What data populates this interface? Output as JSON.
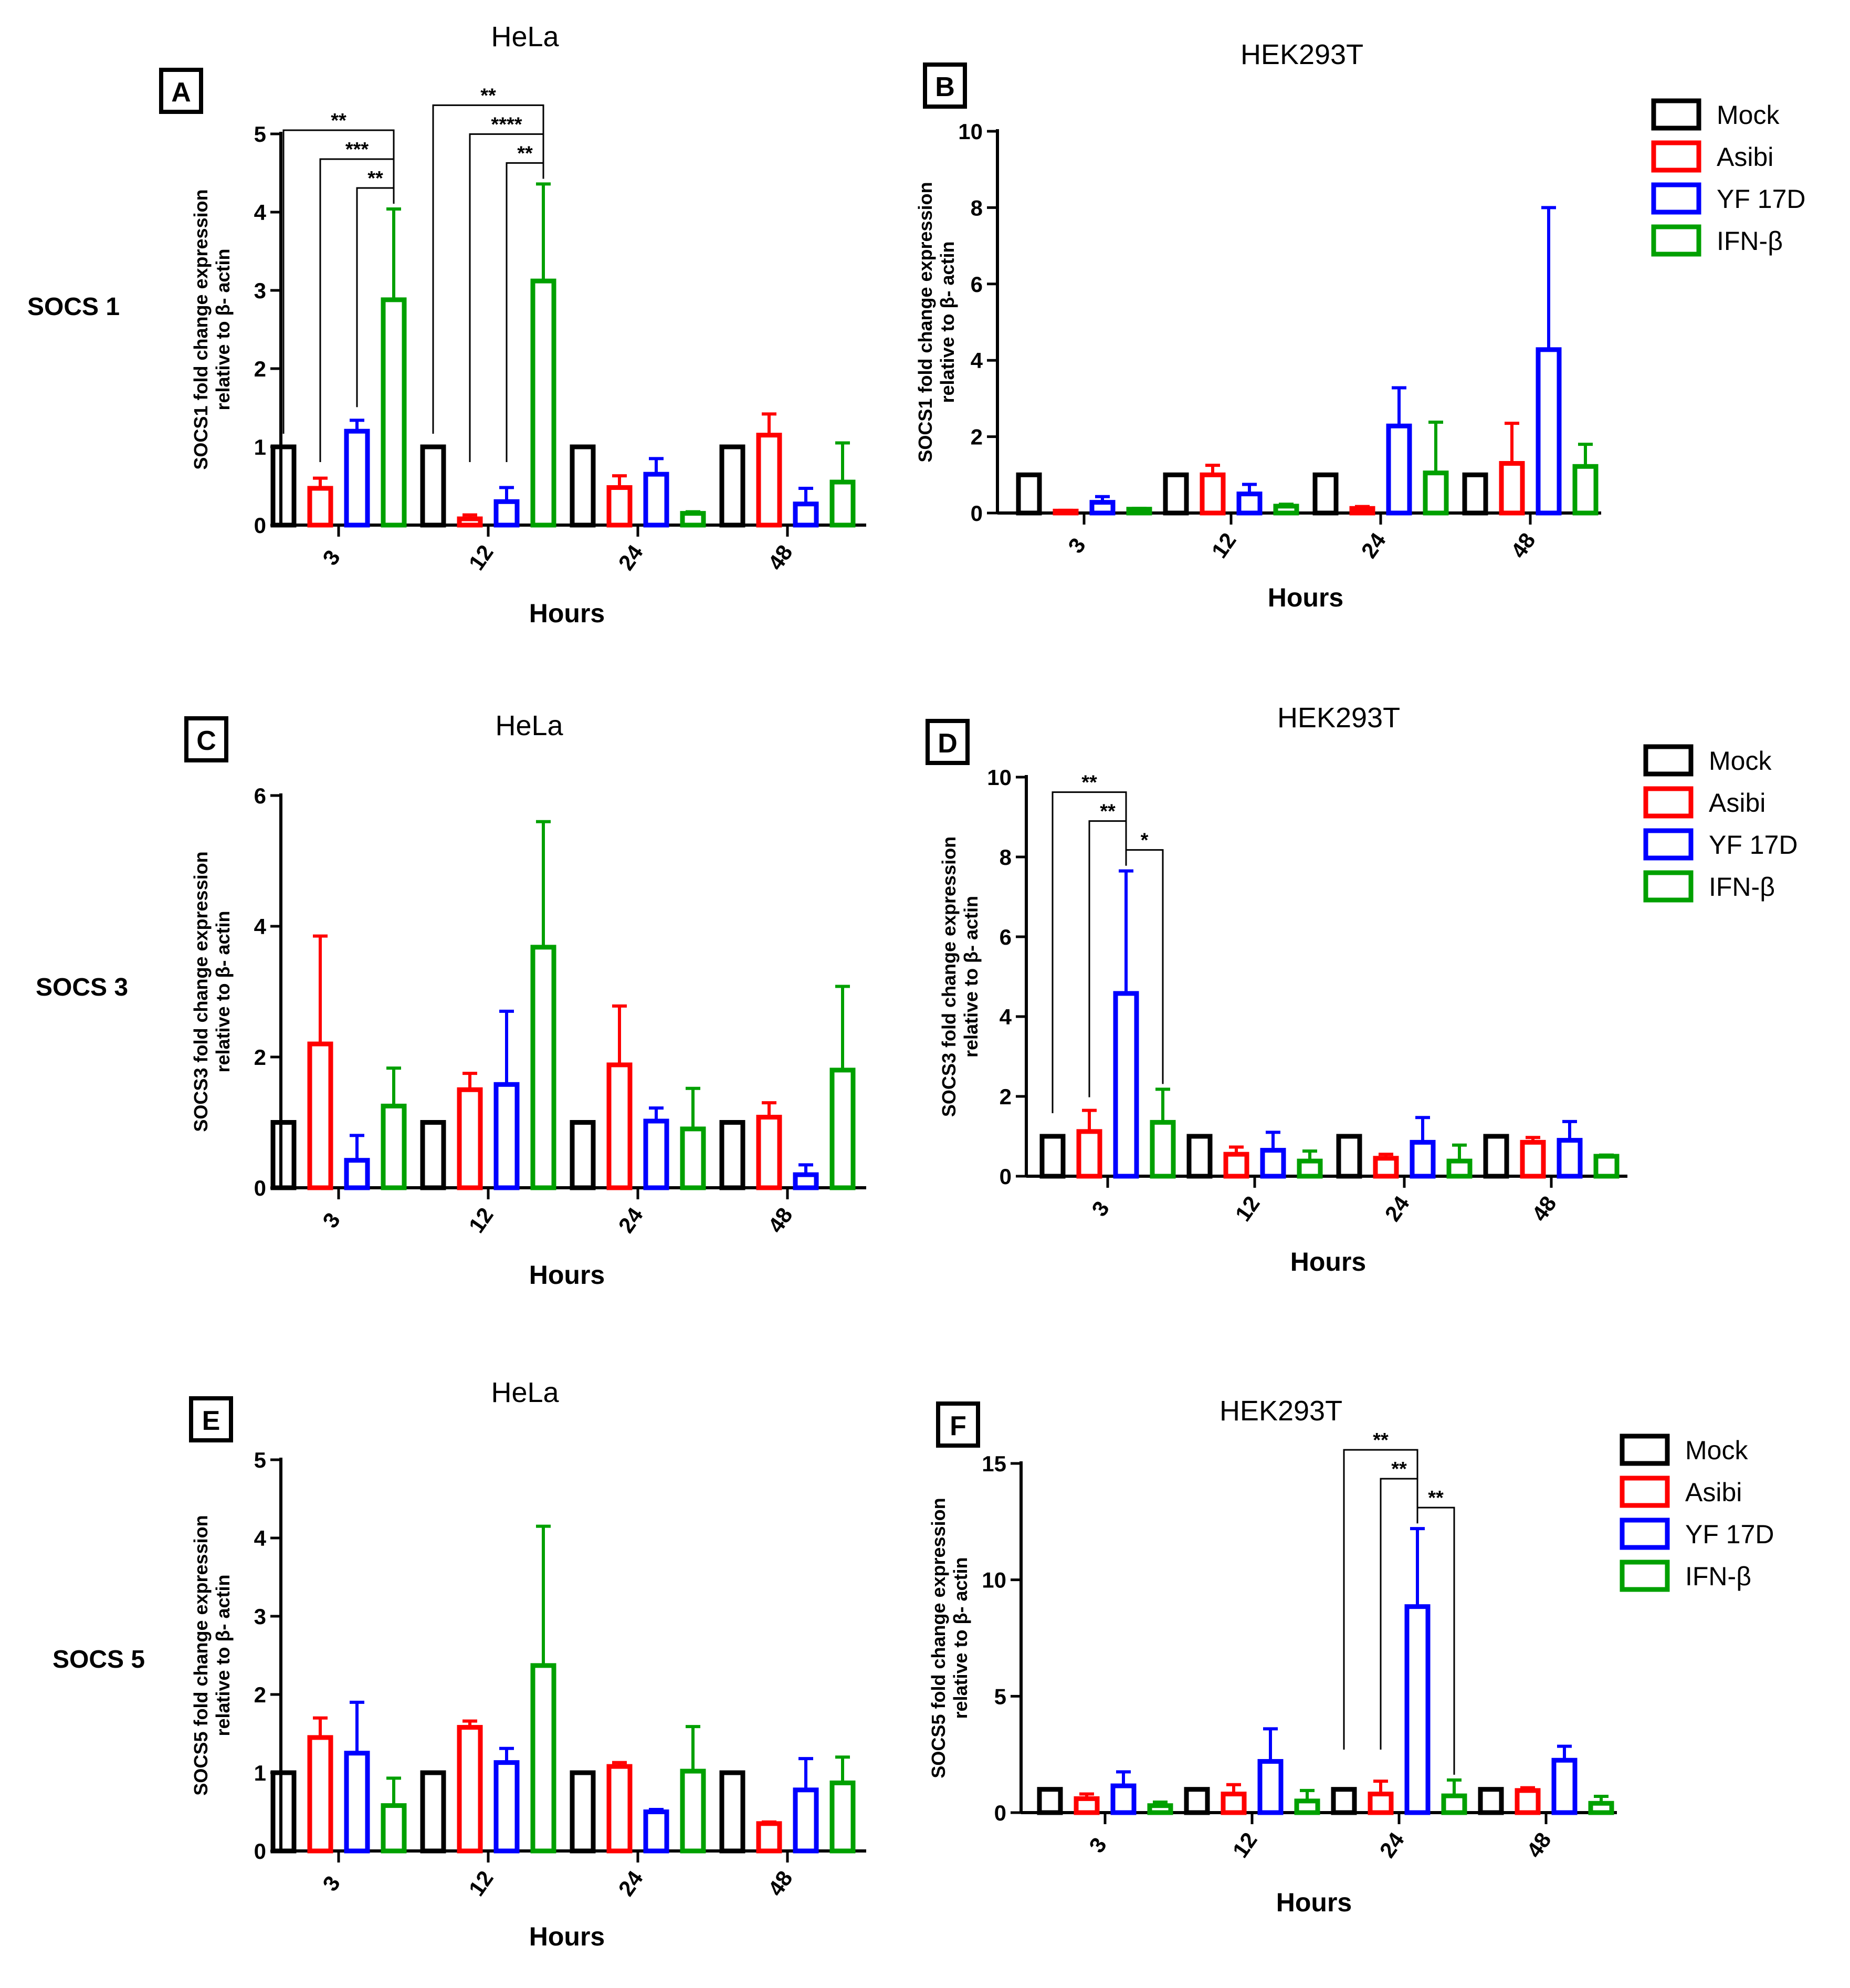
{
  "row_labels": [
    "SOCS 1",
    "SOCS 3",
    "SOCS 5"
  ],
  "legend": {
    "items": [
      {
        "label": "Mock",
        "color": "#000000"
      },
      {
        "label": "Asibi",
        "color": "#ff0000"
      },
      {
        "label": "YF 17D",
        "color": "#0000ff"
      },
      {
        "label": "IFN-β",
        "color": "#00a000"
      }
    ]
  },
  "chart_data": [
    {
      "panel": "A",
      "type": "bar",
      "title": "HeLa",
      "xlabel": "Hours",
      "ylabel": [
        "SOCS1 fold change expression",
        "relative to β- actin"
      ],
      "categories": [
        "3",
        "12",
        "24",
        "48"
      ],
      "ylim": [
        0,
        5
      ],
      "yticks": [
        0,
        1,
        2,
        3,
        4,
        5
      ],
      "series": [
        {
          "name": "Mock",
          "values": [
            1,
            1,
            1,
            1
          ],
          "errors": [
            0,
            0,
            0,
            0
          ]
        },
        {
          "name": "Asibi",
          "values": [
            0.47,
            0.08,
            0.48,
            1.15
          ],
          "errors": [
            0.13,
            0.05,
            0.15,
            0.27
          ]
        },
        {
          "name": "YF 17D",
          "values": [
            1.2,
            0.3,
            0.65,
            0.27
          ],
          "errors": [
            0.14,
            0.18,
            0.2,
            0.2
          ]
        },
        {
          "name": "IFN-β",
          "values": [
            2.88,
            3.12,
            0.15,
            0.55
          ],
          "errors": [
            1.16,
            1.24,
            0.02,
            0.5
          ]
        }
      ],
      "significance": [
        {
          "label": "**",
          "cat": 0,
          "from": 0,
          "to": 3
        },
        {
          "label": "***",
          "cat": 0,
          "from": 1,
          "to": 3
        },
        {
          "label": "**",
          "cat": 0,
          "from": 2,
          "to": 3
        },
        {
          "label": "**",
          "cat": 1,
          "from": 0,
          "to": 3
        },
        {
          "label": "****",
          "cat": 1,
          "from": 1,
          "to": 3
        },
        {
          "label": "**",
          "cat": 1,
          "from": 2,
          "to": 3
        }
      ]
    },
    {
      "panel": "B",
      "type": "bar",
      "title": "HEK293T",
      "xlabel": "Hours",
      "ylabel": [
        "SOCS1 fold change expression",
        "relative to β- actin"
      ],
      "categories": [
        "3",
        "12",
        "24",
        "48"
      ],
      "ylim": [
        0,
        10
      ],
      "yticks": [
        0,
        2,
        4,
        6,
        8,
        10
      ],
      "series": [
        {
          "name": "Mock",
          "values": [
            1,
            1,
            1,
            1
          ],
          "errors": [
            0,
            0,
            0,
            0
          ]
        },
        {
          "name": "Asibi",
          "values": [
            0.05,
            1.0,
            0.12,
            1.3
          ],
          "errors": [
            0.02,
            0.25,
            0.05,
            1.05
          ]
        },
        {
          "name": "YF 17D",
          "values": [
            0.28,
            0.5,
            2.28,
            4.28
          ],
          "errors": [
            0.15,
            0.25,
            1.0,
            3.72
          ]
        },
        {
          "name": "IFN-β",
          "values": [
            0.1,
            0.18,
            1.05,
            1.22
          ],
          "errors": [
            0.02,
            0.05,
            1.33,
            0.58
          ]
        }
      ],
      "significance": []
    },
    {
      "panel": "C",
      "type": "bar",
      "title": "HeLa",
      "xlabel": "Hours",
      "ylabel": [
        "SOCS3 fold change expression",
        "relative to β- actin"
      ],
      "categories": [
        "3",
        "12",
        "24",
        "48"
      ],
      "ylim": [
        0,
        6
      ],
      "yticks": [
        0,
        2,
        4,
        6
      ],
      "series": [
        {
          "name": "Mock",
          "values": [
            1,
            1,
            1,
            1
          ],
          "errors": [
            0,
            0,
            0,
            0
          ]
        },
        {
          "name": "Asibi",
          "values": [
            2.2,
            1.5,
            1.88,
            1.08
          ],
          "errors": [
            1.65,
            0.25,
            0.9,
            0.22
          ]
        },
        {
          "name": "YF 17D",
          "values": [
            0.42,
            1.58,
            1.02,
            0.2
          ],
          "errors": [
            0.38,
            1.12,
            0.2,
            0.15
          ]
        },
        {
          "name": "IFN-β",
          "values": [
            1.25,
            3.68,
            0.9,
            1.8
          ],
          "errors": [
            0.58,
            1.92,
            0.62,
            1.28
          ]
        }
      ],
      "significance": []
    },
    {
      "panel": "D",
      "type": "bar",
      "title": "HEK293T",
      "xlabel": "Hours",
      "ylabel": [
        "SOCS3 fold change expression",
        "relative to β- actin"
      ],
      "categories": [
        "3",
        "12",
        "24",
        "48"
      ],
      "ylim": [
        0,
        10
      ],
      "yticks": [
        0,
        2,
        4,
        6,
        8,
        10
      ],
      "series": [
        {
          "name": "Mock",
          "values": [
            1,
            1,
            1,
            1
          ],
          "errors": [
            0,
            0,
            0,
            0
          ]
        },
        {
          "name": "Asibi",
          "values": [
            1.12,
            0.55,
            0.45,
            0.85
          ],
          "errors": [
            0.53,
            0.18,
            0.1,
            0.12
          ]
        },
        {
          "name": "YF 17D",
          "values": [
            4.58,
            0.65,
            0.85,
            0.9
          ],
          "errors": [
            3.07,
            0.45,
            0.62,
            0.47
          ]
        },
        {
          "name": "IFN-β",
          "values": [
            1.35,
            0.38,
            0.38,
            0.5
          ],
          "errors": [
            0.83,
            0.25,
            0.4,
            0.03
          ]
        }
      ],
      "significance": [
        {
          "label": "**",
          "cat": 0,
          "from": 0,
          "to": 2
        },
        {
          "label": "**",
          "cat": 0,
          "from": 1,
          "to": 2
        },
        {
          "label": "*",
          "cat": 0,
          "from": 2,
          "to": 3
        }
      ]
    },
    {
      "panel": "E",
      "type": "bar",
      "title": "HeLa",
      "xlabel": "Hours",
      "ylabel": [
        "SOCS5 fold change expression",
        "relative to β- actin"
      ],
      "categories": [
        "3",
        "12",
        "24",
        "48"
      ],
      "ylim": [
        0,
        5
      ],
      "yticks": [
        0,
        1,
        2,
        3,
        4,
        5
      ],
      "series": [
        {
          "name": "Mock",
          "values": [
            1,
            1,
            1,
            1
          ],
          "errors": [
            0,
            0,
            0,
            0
          ]
        },
        {
          "name": "Asibi",
          "values": [
            1.45,
            1.58,
            1.08,
            0.35
          ],
          "errors": [
            0.25,
            0.08,
            0.05,
            0.02
          ]
        },
        {
          "name": "YF 17D",
          "values": [
            1.25,
            1.13,
            0.5,
            0.78
          ],
          "errors": [
            0.65,
            0.18,
            0.03,
            0.4
          ]
        },
        {
          "name": "IFN-β",
          "values": [
            0.58,
            2.37,
            1.02,
            0.87
          ],
          "errors": [
            0.35,
            1.78,
            0.57,
            0.33
          ]
        }
      ],
      "significance": []
    },
    {
      "panel": "F",
      "type": "bar",
      "title": "HEK293T",
      "xlabel": "Hours",
      "ylabel": [
        "SOCS5 fold change expression",
        "relative to β- actin"
      ],
      "categories": [
        "3",
        "12",
        "24",
        "48"
      ],
      "ylim": [
        0,
        15
      ],
      "yticks": [
        0,
        5,
        10,
        15
      ],
      "series": [
        {
          "name": "Mock",
          "values": [
            1,
            1,
            1,
            1
          ],
          "errors": [
            0,
            0,
            0,
            0
          ]
        },
        {
          "name": "Asibi",
          "values": [
            0.6,
            0.8,
            0.8,
            0.95
          ],
          "errors": [
            0.2,
            0.4,
            0.55,
            0.12
          ]
        },
        {
          "name": "YF 17D",
          "values": [
            1.15,
            2.2,
            8.85,
            2.25
          ],
          "errors": [
            0.6,
            1.4,
            3.35,
            0.6
          ]
        },
        {
          "name": "IFN-β",
          "values": [
            0.3,
            0.5,
            0.72,
            0.4
          ],
          "errors": [
            0.15,
            0.45,
            0.68,
            0.3
          ]
        }
      ],
      "significance": [
        {
          "label": "**",
          "cat": 2,
          "from": 0,
          "to": 2
        },
        {
          "label": "**",
          "cat": 2,
          "from": 1,
          "to": 2
        },
        {
          "label": "**",
          "cat": 2,
          "from": 2,
          "to": 3
        }
      ]
    }
  ]
}
